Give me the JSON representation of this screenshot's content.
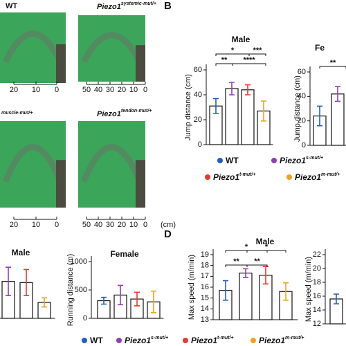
{
  "panel_letters": [
    "B",
    "D"
  ],
  "photos": [
    {
      "title": {
        "gene": "WT"
      },
      "scale": [
        "20",
        "10",
        "0"
      ]
    },
    {
      "title": {
        "gene": "Piezo1",
        "allele": "systemic-mut/+"
      },
      "scale": [
        "50",
        "40",
        "30",
        "20",
        "10",
        "0"
      ]
    },
    {
      "title": {
        "allele": "muscle-mut/+"
      },
      "scale": [
        "20",
        "10",
        "0"
      ]
    },
    {
      "title": {
        "gene": "Piezo1",
        "allele": "tendon-mut/+"
      },
      "scale": [
        "50",
        "40",
        "30",
        "20",
        "10",
        "0"
      ],
      "unit": "(cm)"
    }
  ],
  "legends": [
    [
      {
        "gene": "WT",
        "color": "#1f5fbf"
      },
      {
        "gene": "Piezo1",
        "allele": "s-mut/+",
        "color": "#8e3fb2"
      },
      {
        "gene": "Piezo1",
        "allele": "t-mut/+",
        "color": "#e8392b"
      },
      {
        "gene": "Piezo1",
        "allele": "m-mut/+",
        "color": "#f0a21c"
      }
    ],
    [
      {
        "gene": "WT",
        "color": "#1f5fbf"
      },
      {
        "gene": "Piezo1",
        "allele": "s-mut/+",
        "color": "#8e3fb2"
      },
      {
        "gene": "Piezo1",
        "allele": "t-mut/+",
        "color": "#e8392b"
      },
      {
        "gene": "Piezo1",
        "allele": "m-mut/+",
        "color": "#f0a21c"
      }
    ]
  ],
  "chart_data": [
    {
      "type": "bar",
      "title": "Male",
      "y_label": "Jump distance (cm)",
      "categories": [
        null,
        null,
        null,
        null
      ],
      "values": [
        31,
        45,
        44,
        27
      ],
      "errors": [
        6,
        5,
        4,
        8
      ],
      "colors": [
        "#1f5fbf",
        "#8e3fb2",
        "#e8392b",
        "#f0a21c"
      ],
      "ylim": [
        0,
        60
      ],
      "yticks": [
        0,
        20,
        40,
        60
      ],
      "annotations": [
        "*",
        "***",
        "**",
        "****"
      ]
    },
    {
      "type": "bar",
      "title": "Fe",
      "y_label": "Jump distance (cm)",
      "categories": [
        null,
        null
      ],
      "values": [
        24,
        42
      ],
      "errors": [
        8,
        6
      ],
      "colors": [
        "#1f5fbf",
        "#8e3fb2"
      ],
      "ylim": [
        0,
        60
      ],
      "yticks": [
        0,
        20,
        40,
        60
      ],
      "annotations": [
        "**"
      ]
    },
    {
      "type": "bar",
      "title": "Male",
      "categories": [
        null,
        null,
        null
      ],
      "values": [
        650,
        630,
        280
      ],
      "errors": [
        250,
        230,
        80
      ],
      "colors": [
        "#8e3fb2",
        "#e8392b",
        "#f0a21c"
      ],
      "ylim": [
        0,
        1000
      ]
    },
    {
      "type": "bar",
      "title": "Female",
      "y_label": "Running distance (m)",
      "categories": [
        null,
        null,
        null,
        null
      ],
      "values": [
        310,
        410,
        340,
        290
      ],
      "errors": [
        60,
        170,
        120,
        190
      ],
      "colors": [
        "#1f5fbf",
        "#8e3fb2",
        "#e8392b",
        "#f0a21c"
      ],
      "ylim": [
        0,
        1000
      ],
      "yticks": [
        0,
        500,
        1000
      ]
    },
    {
      "type": "bar",
      "title": "Male",
      "y_label": "Max speed (m/min)",
      "categories": [
        null,
        null,
        null,
        null
      ],
      "values": [
        15.7,
        17.3,
        17.1,
        15.6
      ],
      "errors": [
        0.9,
        0.4,
        0.8,
        0.8
      ],
      "colors": [
        "#1f5fbf",
        "#8e3fb2",
        "#e8392b",
        "#f0a21c"
      ],
      "ylim": [
        13,
        19
      ],
      "yticks": [
        13,
        14,
        15,
        16,
        17,
        18,
        19
      ],
      "annotations": [
        "*",
        "*",
        "**",
        "**"
      ]
    },
    {
      "type": "bar",
      "y_label": "Max speed (m/min)",
      "categories": [
        null
      ],
      "values": [
        15.6
      ],
      "errors": [
        0.7
      ],
      "colors": [
        "#1f5fbf"
      ],
      "ylim": [
        12,
        22
      ],
      "yticks": [
        12,
        14,
        16,
        18,
        20,
        22
      ]
    }
  ]
}
